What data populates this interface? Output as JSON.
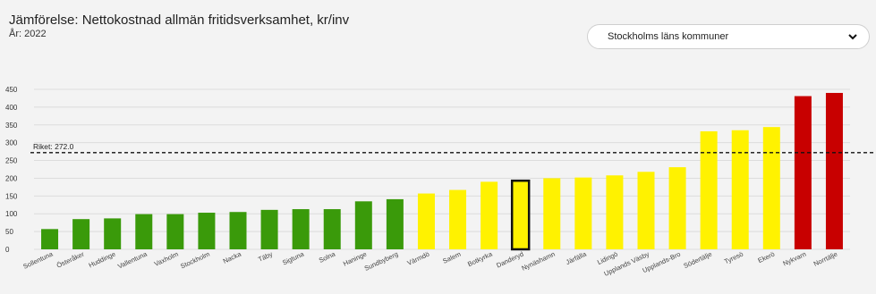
{
  "header": {
    "title": "Jämförelse: Nettokostnad allmän fritidsverksamhet, kr/inv",
    "subtitle": "År: 2022"
  },
  "region_select": {
    "selected": "Stockholms läns kommuner",
    "icon": "chevron-down-icon"
  },
  "colors": {
    "green": "#3a9a0a",
    "yellow": "#fff200",
    "red": "#c80000",
    "highlight_border": "#111111"
  },
  "chart_data": {
    "type": "bar",
    "title": "Jämförelse: Nettokostnad allmän fritidsverksamhet, kr/inv",
    "xlabel": "",
    "ylabel": "",
    "ylim": [
      0,
      450
    ],
    "yticks": [
      0,
      50,
      100,
      150,
      200,
      250,
      300,
      350,
      400,
      450
    ],
    "grid": true,
    "categories": [
      "Sollentuna",
      "Österåker",
      "Huddinge",
      "Vallentuna",
      "Vaxholm",
      "Stockholm",
      "Nacka",
      "Täby",
      "Sigtuna",
      "Solna",
      "Haninge",
      "Sundbyberg",
      "Värmdö",
      "Salem",
      "Botkyrka",
      "Danderyd",
      "Nynäshamn",
      "Järfälla",
      "Lidingö",
      "Upplands Väsby",
      "Upplands-Bro",
      "Södertälje",
      "Tyresö",
      "Ekerö",
      "Nykvarn",
      "Norrtälje"
    ],
    "values": [
      57,
      85,
      87,
      99,
      99,
      103,
      105,
      111,
      113,
      113,
      135,
      141,
      157,
      167,
      190,
      193,
      200,
      202,
      208,
      218,
      231,
      332,
      335,
      344,
      431,
      440
    ],
    "bar_colors": [
      "green",
      "green",
      "green",
      "green",
      "green",
      "green",
      "green",
      "green",
      "green",
      "green",
      "green",
      "green",
      "yellow",
      "yellow",
      "yellow",
      "yellow",
      "yellow",
      "yellow",
      "yellow",
      "yellow",
      "yellow",
      "yellow",
      "yellow",
      "yellow",
      "red",
      "red"
    ],
    "highlighted": "Danderyd",
    "reference_line": {
      "label": "Riket: 272.0",
      "value": 272.0
    }
  }
}
